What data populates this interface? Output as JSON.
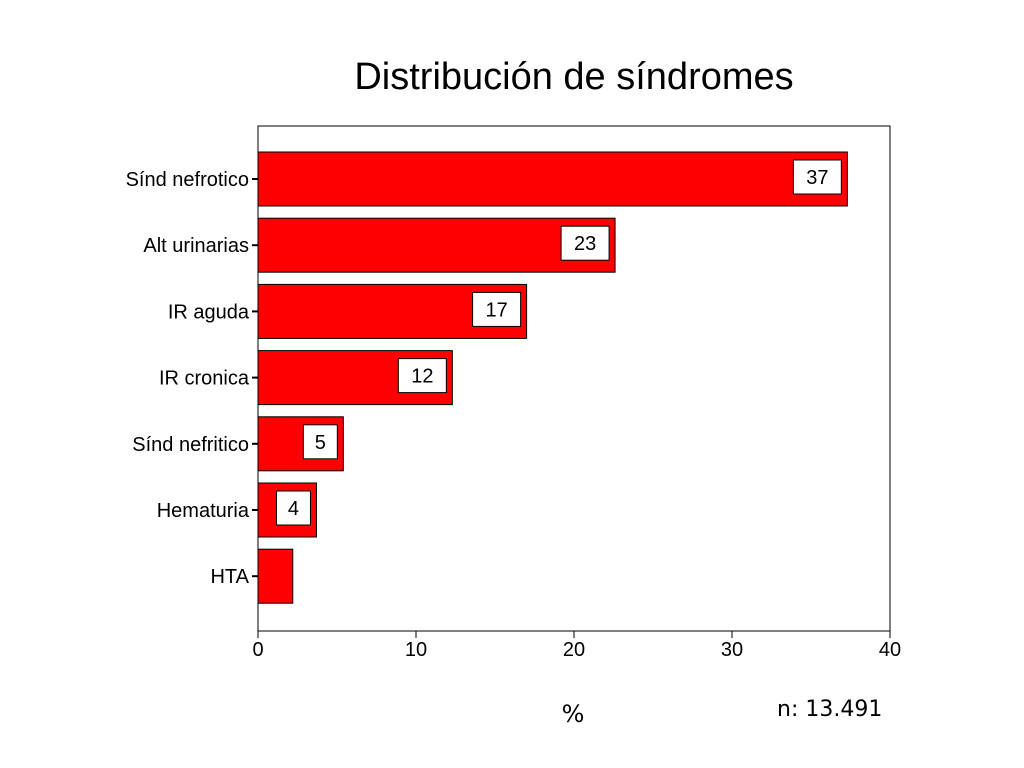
{
  "chart_data": {
    "type": "bar",
    "orientation": "horizontal",
    "title": "Distribución de síndromes",
    "categories": [
      "Sínd nefrotico",
      "Alt urinarias",
      "IR aguda",
      "IR cronica",
      "Sínd nefritico",
      "Hematuria",
      "HTA"
    ],
    "values": [
      37.3,
      22.6,
      17,
      12.3,
      5.4,
      3.7,
      2.2
    ],
    "data_labels": [
      "37",
      "23",
      "17",
      "12",
      "5",
      "4",
      ""
    ],
    "xlabel": "%",
    "ylabel": "",
    "xlim": [
      0,
      40
    ],
    "x_ticks": [
      0,
      10,
      20,
      30,
      40
    ],
    "grid": false,
    "legend": "none",
    "bar_color": "#ff0000",
    "annotation": "n: 13.491"
  }
}
